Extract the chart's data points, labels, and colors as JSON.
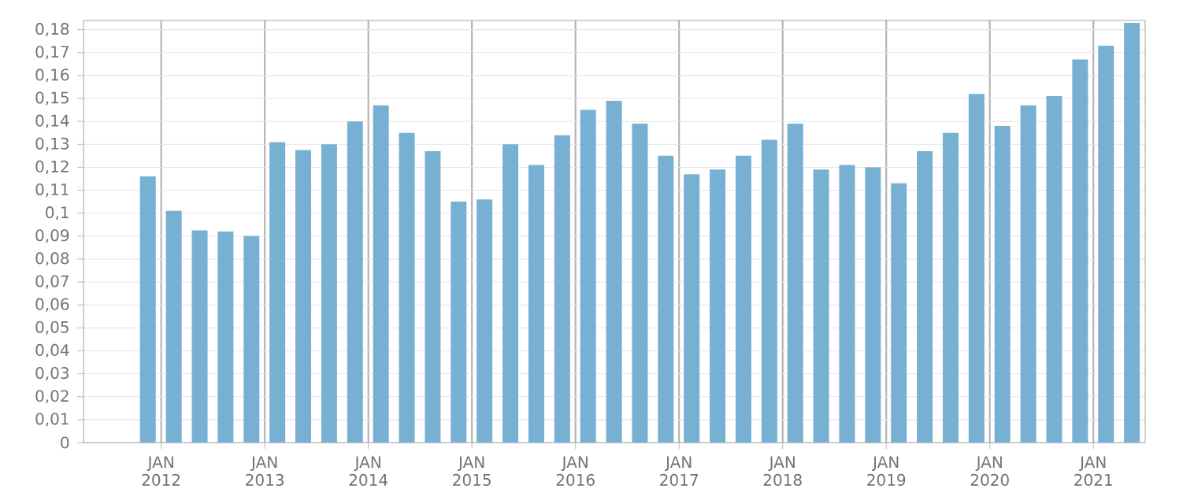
{
  "chart_data": {
    "type": "bar",
    "color": "#77b0d2",
    "grid": true,
    "x": [
      "2011-11-15",
      "2012-02-15",
      "2012-05-15",
      "2012-08-15",
      "2012-11-15",
      "2013-02-15",
      "2013-05-15",
      "2013-08-15",
      "2013-11-15",
      "2014-02-15",
      "2014-05-15",
      "2014-08-15",
      "2014-11-15",
      "2015-02-15",
      "2015-05-15",
      "2015-08-15",
      "2015-11-15",
      "2016-02-15",
      "2016-05-15",
      "2016-08-15",
      "2016-11-15",
      "2017-02-15",
      "2017-05-15",
      "2017-08-15",
      "2017-11-15",
      "2018-02-15",
      "2018-05-15",
      "2018-08-15",
      "2018-11-15",
      "2019-02-15",
      "2019-05-15",
      "2019-08-15",
      "2019-11-15",
      "2020-02-15",
      "2020-05-15",
      "2020-08-15",
      "2020-11-15",
      "2021-02-15",
      "2021-05-15"
    ],
    "values": [
      0.116,
      0.101,
      0.0925,
      0.092,
      0.09,
      0.131,
      0.1275,
      0.13,
      0.14,
      0.147,
      0.135,
      0.127,
      0.105,
      0.106,
      0.13,
      0.121,
      0.134,
      0.145,
      0.149,
      0.139,
      0.125,
      0.117,
      0.119,
      0.125,
      0.132,
      0.139,
      0.119,
      0.121,
      0.12,
      0.113,
      0.127,
      0.135,
      0.152,
      0.138,
      0.147,
      0.151,
      0.167,
      0.173,
      0.183
    ],
    "xlim": [
      "2011-04",
      "2021-07"
    ],
    "xticks": [
      {
        "value": "2012-01",
        "label": "JAN 2012"
      },
      {
        "value": "2013-01",
        "label": "JAN 2013"
      },
      {
        "value": "2014-01",
        "label": "JAN 2014"
      },
      {
        "value": "2015-01",
        "label": "JAN 2015"
      },
      {
        "value": "2016-01",
        "label": "JAN 2016"
      },
      {
        "value": "2017-01",
        "label": "JAN 2017"
      },
      {
        "value": "2018-01",
        "label": "JAN 2018"
      },
      {
        "value": "2019-01",
        "label": "JAN 2019"
      },
      {
        "value": "2020-01",
        "label": "JAN 2020"
      },
      {
        "value": "2021-01",
        "label": "JAN 2021"
      }
    ],
    "ylim": [
      0,
      0.184
    ],
    "yticks": [
      0,
      {
        "value": 0.01,
        "label": "0,01"
      },
      {
        "value": 0.02,
        "label": "0,02"
      },
      {
        "value": 0.03,
        "label": "0,03"
      },
      {
        "value": 0.04,
        "label": "0,04"
      },
      {
        "value": 0.05,
        "label": "0,05"
      },
      {
        "value": 0.06,
        "label": "0,06"
      },
      {
        "value": 0.07,
        "label": "0,07"
      },
      {
        "value": 0.08,
        "label": "0,08"
      },
      {
        "value": 0.09,
        "label": "0,09"
      },
      {
        "value": 0.1,
        "label": "0,1"
      },
      {
        "value": 0.11,
        "label": "0,11"
      },
      {
        "value": 0.12,
        "label": "0,12"
      },
      {
        "value": 0.13,
        "label": "0,13"
      },
      {
        "value": 0.14,
        "label": "0,14"
      },
      {
        "value": 0.15,
        "label": "0,15"
      },
      {
        "value": 0.16,
        "label": "0,16"
      },
      {
        "value": 0.17,
        "label": "0,17"
      },
      {
        "value": 0.18,
        "label": "0,18"
      }
    ]
  }
}
